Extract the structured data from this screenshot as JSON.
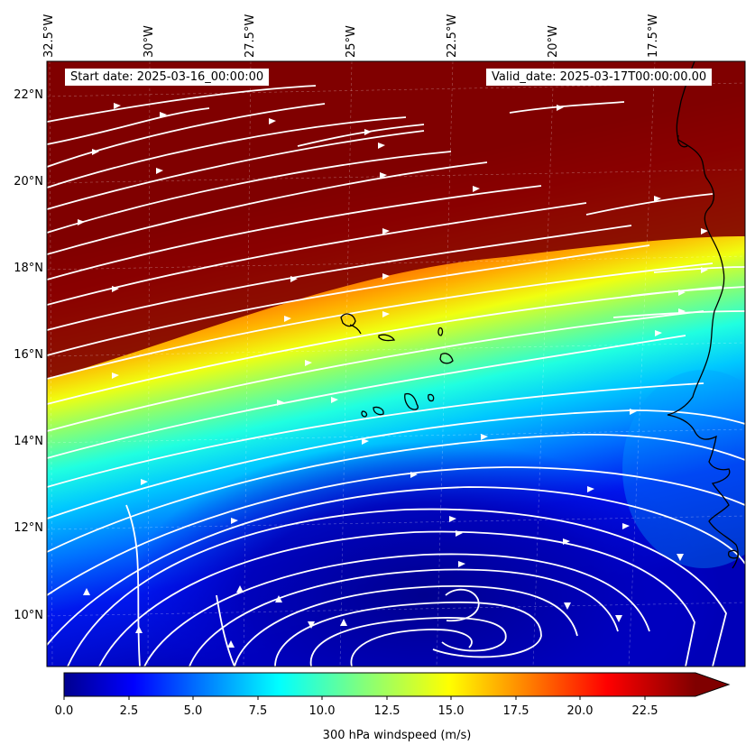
{
  "header": {
    "start_date": "Start date: 2025-03-16_00:00:00",
    "valid_date": "Valid_date: 2025-03-17T00:00:00.00"
  },
  "lon_ticks": [
    "32.5°W",
    "30°W",
    "27.5°W",
    "25°W",
    "22.5°W",
    "20°W",
    "17.5°W"
  ],
  "lat_ticks": [
    "22°N",
    "20°N",
    "18°N",
    "16°N",
    "14°N",
    "12°N",
    "10°N"
  ],
  "colorbar": {
    "title": "300 hPa windspeed (m/s)",
    "ticks": [
      "0.0",
      "2.5",
      "5.0",
      "7.5",
      "10.0",
      "12.5",
      "15.0",
      "17.5",
      "20.0",
      "22.5"
    ],
    "min": 0,
    "max": 24,
    "extend": "max"
  },
  "map_extent": {
    "lon_min": -32.7,
    "lon_max": -15.3,
    "lat_min": 8.9,
    "lat_max": 22.8
  },
  "colors": {
    "streamline": "#ffffff",
    "coastline": "#000000",
    "max_wind": "#800000",
    "min_wind": "#00008f"
  }
}
